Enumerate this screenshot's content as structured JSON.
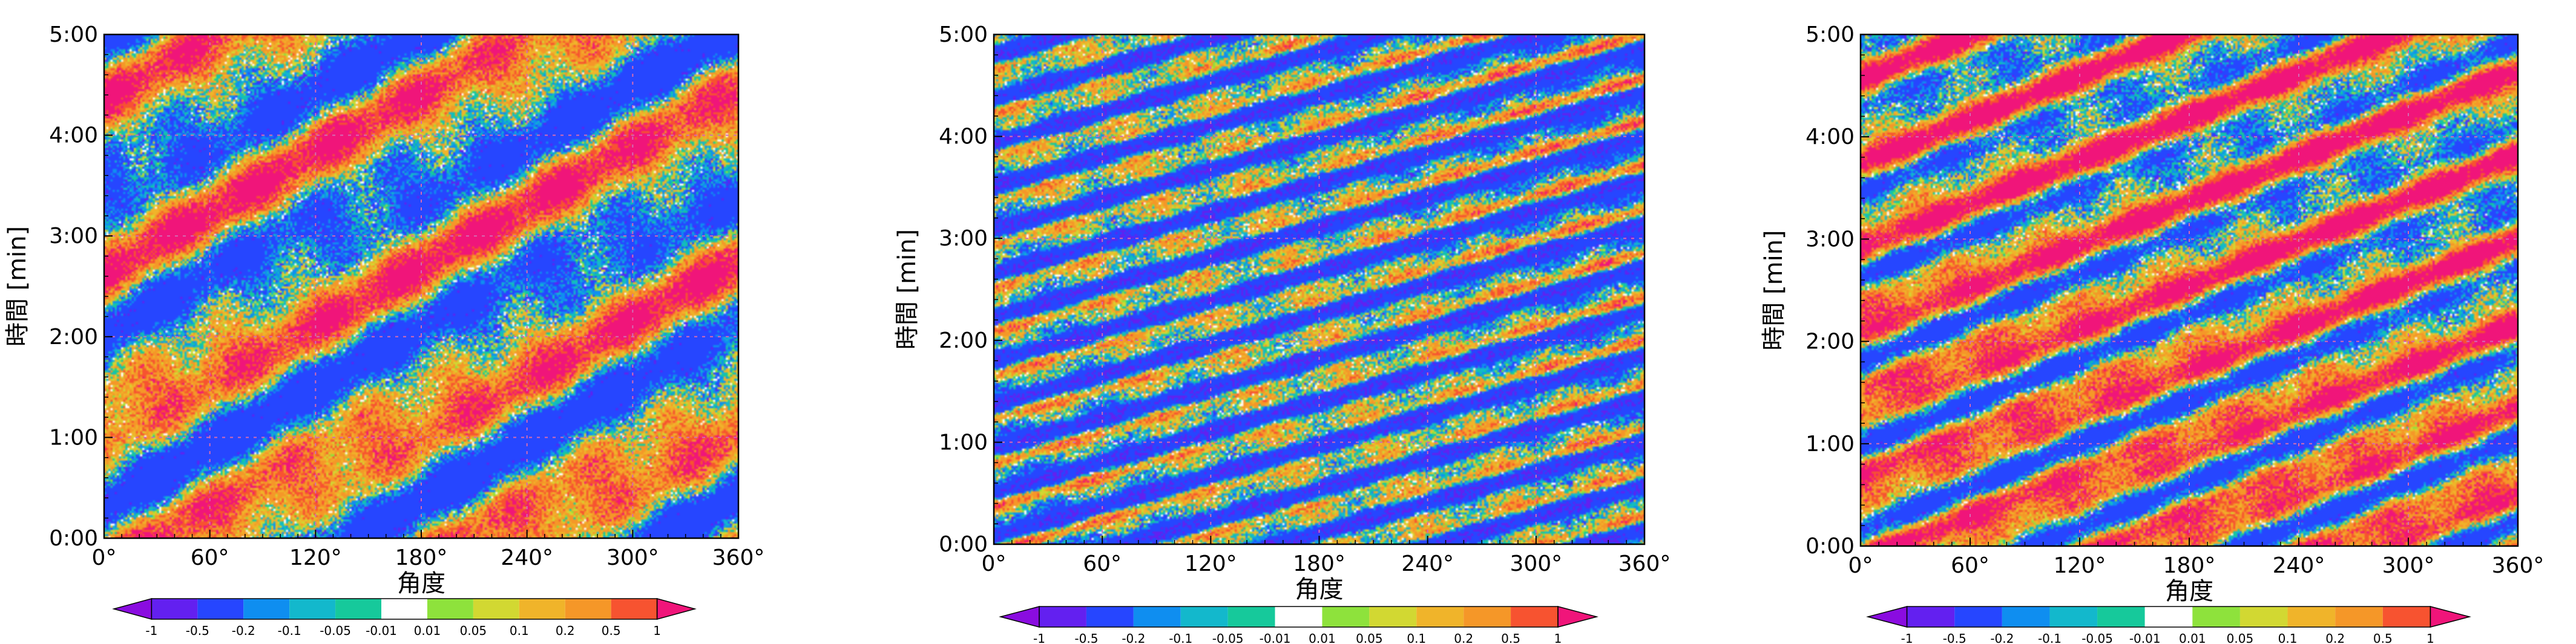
{
  "chart_data": [
    {
      "type": "heatmap",
      "xlabel": "角度",
      "ylabel": "時間 [min]",
      "x_ticks": [
        "0°",
        "60°",
        "120°",
        "180°",
        "240°",
        "300°",
        "360°"
      ],
      "y_ticks": [
        "0:00",
        "1:00",
        "2:00",
        "3:00",
        "4:00",
        "5:00"
      ],
      "xlim": [
        0,
        360
      ],
      "ylim_minutes": [
        0,
        5
      ],
      "grid": true,
      "pattern": {
        "drift_deg_per_min": 115,
        "dominant": "mixed"
      },
      "colorbar": {
        "ticks": [
          "-1",
          "-0.5",
          "-0.2",
          "-0.1",
          "-0.05",
          "-0.01",
          "0.01",
          "0.05",
          "0.1",
          "0.2",
          "0.5",
          "1"
        ],
        "extend": "both",
        "colors": [
          "#8a0ce0",
          "#6320f0",
          "#2646ff",
          "#0f8ef0",
          "#13b8cc",
          "#16c99b",
          "#ffffff",
          "#8ee23c",
          "#d2d832",
          "#f0b42a",
          "#f59728",
          "#f75330",
          "#f0157a"
        ]
      }
    },
    {
      "type": "heatmap",
      "xlabel": "角度",
      "ylabel": "時間 [min]",
      "x_ticks": [
        "0°",
        "60°",
        "120°",
        "180°",
        "240°",
        "300°",
        "360°"
      ],
      "y_ticks": [
        "0:00",
        "1:00",
        "2:00",
        "3:00",
        "4:00",
        "5:00"
      ],
      "xlim": [
        0,
        360
      ],
      "ylim_minutes": [
        0,
        5
      ],
      "grid": true,
      "pattern": {
        "drift_deg_per_min": 210,
        "dominant": "blue"
      },
      "colorbar": {
        "ticks": [
          "-1",
          "-0.5",
          "-0.2",
          "-0.1",
          "-0.05",
          "-0.01",
          "0.01",
          "0.05",
          "0.1",
          "0.2",
          "0.5",
          "1"
        ],
        "extend": "both",
        "colors": [
          "#8a0ce0",
          "#6320f0",
          "#2646ff",
          "#0f8ef0",
          "#13b8cc",
          "#16c99b",
          "#ffffff",
          "#8ee23c",
          "#d2d832",
          "#f0b42a",
          "#f59728",
          "#f75330",
          "#f0157a"
        ]
      }
    },
    {
      "type": "heatmap",
      "xlabel": "角度",
      "ylabel": "時間 [min]",
      "x_ticks": [
        "0°",
        "60°",
        "120°",
        "180°",
        "240°",
        "300°",
        "360°"
      ],
      "y_ticks": [
        "0:00",
        "1:00",
        "2:00",
        "3:00",
        "4:00",
        "5:00"
      ],
      "xlim": [
        0,
        360
      ],
      "ylim_minutes": [
        0,
        5
      ],
      "grid": true,
      "pattern": {
        "drift_deg_per_min": 150,
        "dominant": "red"
      },
      "colorbar": {
        "ticks": [
          "-1",
          "-0.5",
          "-0.2",
          "-0.1",
          "-0.05",
          "-0.01",
          "0.01",
          "0.05",
          "0.1",
          "0.2",
          "0.5",
          "1"
        ],
        "extend": "both",
        "colors": [
          "#8a0ce0",
          "#6320f0",
          "#2646ff",
          "#0f8ef0",
          "#13b8cc",
          "#16c99b",
          "#ffffff",
          "#8ee23c",
          "#d2d832",
          "#f0b42a",
          "#f59728",
          "#f75330",
          "#f0157a"
        ]
      }
    }
  ]
}
